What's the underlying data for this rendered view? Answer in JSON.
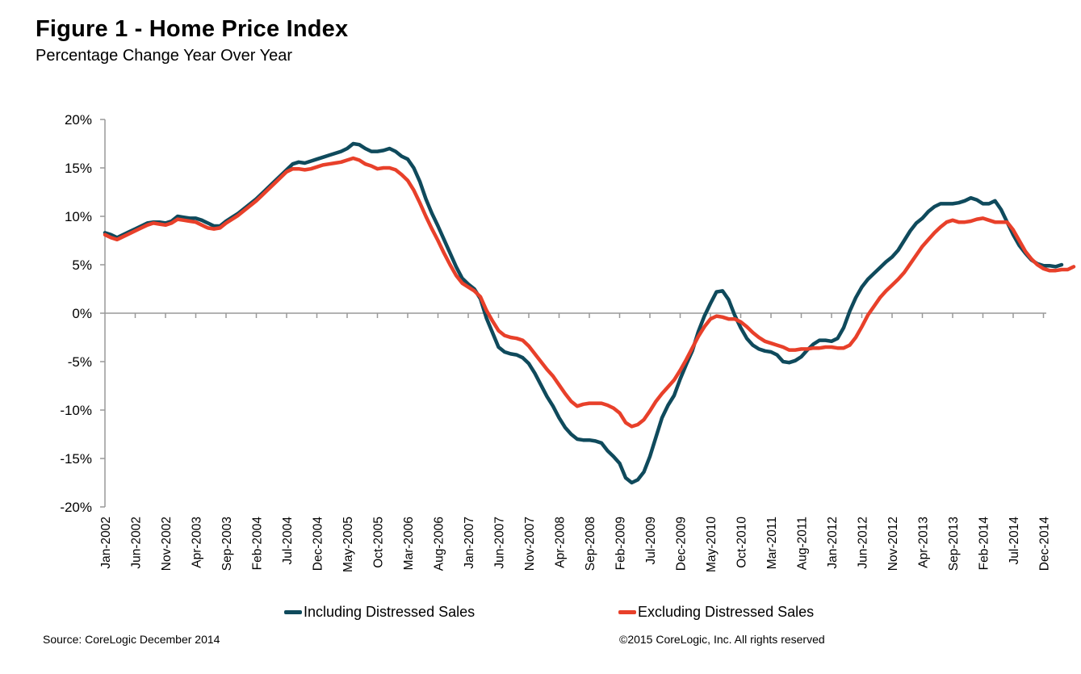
{
  "header": {
    "title": "Figure 1 - Home Price Index",
    "subtitle": "Percentage Change Year Over Year"
  },
  "footer": {
    "source": "Source: CoreLogic  December 2014",
    "copyright": "©2015 CoreLogic, Inc. All rights reserved"
  },
  "colors": {
    "including": "#0f4a5c",
    "excluding": "#e8402a",
    "axis": "#999999"
  },
  "chart_data": {
    "type": "line",
    "title": "Figure 1 - Home Price Index",
    "subtitle": "Percentage Change Year Over Year",
    "xlabel": "",
    "ylabel": "",
    "ylim": [
      -20,
      20
    ],
    "yticks": [
      20,
      15,
      10,
      5,
      0,
      -5,
      -10,
      -15,
      -20
    ],
    "ytick_labels": [
      "20%",
      "15%",
      "10%",
      "5%",
      "0%",
      "-5%",
      "-10%",
      "-15%",
      "-20%"
    ],
    "x_start": "Jan-2002",
    "x_end": "Dec-2014",
    "x_frequency": "monthly",
    "xtick_labels": [
      "Jan-2002",
      "Jun-2002",
      "Nov-2002",
      "Apr-2003",
      "Sep-2003",
      "Feb-2004",
      "Jul-2004",
      "Dec-2004",
      "May-2005",
      "Oct-2005",
      "Mar-2006",
      "Aug-2006",
      "Jan-2007",
      "Jun-2007",
      "Nov-2007",
      "Apr-2008",
      "Sep-2008",
      "Feb-2009",
      "Jul-2009",
      "Dec-2009",
      "May-2010",
      "Oct-2010",
      "Mar-2011",
      "Aug-2011",
      "Jan-2012",
      "Jun-2012",
      "Nov-2012",
      "Apr-2013",
      "Sep-2013",
      "Feb-2014",
      "Jul-2014",
      "Dec-2014"
    ],
    "grid": false,
    "legend_position": "bottom",
    "series": [
      {
        "name": "Including Distressed Sales",
        "color": "#0f4a5c",
        "values": [
          8.3,
          8.1,
          7.8,
          8.1,
          8.4,
          8.7,
          9.0,
          9.3,
          9.4,
          9.4,
          9.3,
          9.5,
          10.0,
          9.9,
          9.8,
          9.8,
          9.6,
          9.3,
          9.0,
          9.0,
          9.5,
          9.9,
          10.3,
          10.8,
          11.3,
          11.8,
          12.4,
          13.0,
          13.6,
          14.2,
          14.8,
          15.4,
          15.6,
          15.5,
          15.7,
          15.9,
          16.1,
          16.3,
          16.5,
          16.7,
          17.0,
          17.5,
          17.4,
          17.0,
          16.7,
          16.7,
          16.8,
          17.0,
          16.7,
          16.2,
          15.9,
          15.0,
          13.6,
          11.8,
          10.3,
          9.0,
          7.6,
          6.2,
          4.8,
          3.6,
          3.0,
          2.5,
          1.5,
          -0.5,
          -2.0,
          -3.5,
          -4.0,
          -4.2,
          -4.3,
          -4.6,
          -5.2,
          -6.2,
          -7.4,
          -8.6,
          -9.6,
          -10.8,
          -11.8,
          -12.5,
          -13.0,
          -13.1,
          -13.1,
          -13.2,
          -13.4,
          -14.2,
          -14.8,
          -15.5,
          -17.0,
          -17.5,
          -17.2,
          -16.4,
          -14.8,
          -12.8,
          -10.8,
          -9.5,
          -8.5,
          -6.8,
          -5.3,
          -3.9,
          -1.9,
          -0.3,
          1.0,
          2.2,
          2.3,
          1.4,
          -0.2,
          -1.5,
          -2.6,
          -3.3,
          -3.7,
          -3.9,
          -4.0,
          -4.3,
          -5.0,
          -5.1,
          -4.9,
          -4.5,
          -3.8,
          -3.2,
          -2.8,
          -2.8,
          -2.9,
          -2.6,
          -1.5,
          0.2,
          1.6,
          2.7,
          3.5,
          4.1,
          4.7,
          5.3,
          5.8,
          6.5,
          7.5,
          8.5,
          9.3,
          9.8,
          10.5,
          11.0,
          11.3,
          11.3,
          11.3,
          11.4,
          11.6,
          11.9,
          11.7,
          11.3,
          11.3,
          11.6,
          10.7,
          9.4,
          8.1,
          7.0,
          6.2,
          5.5,
          5.1,
          4.9,
          4.9,
          4.8,
          5.0
        ]
      },
      {
        "name": "Excluding Distressed Sales",
        "color": "#e8402a",
        "values": [
          8.1,
          7.8,
          7.6,
          7.9,
          8.2,
          8.5,
          8.8,
          9.1,
          9.3,
          9.2,
          9.1,
          9.3,
          9.7,
          9.6,
          9.5,
          9.4,
          9.1,
          8.8,
          8.7,
          8.8,
          9.3,
          9.7,
          10.1,
          10.6,
          11.1,
          11.6,
          12.2,
          12.8,
          13.4,
          14.0,
          14.6,
          14.9,
          14.9,
          14.8,
          14.9,
          15.1,
          15.3,
          15.4,
          15.5,
          15.6,
          15.8,
          16.0,
          15.8,
          15.4,
          15.2,
          14.9,
          15.0,
          15.0,
          14.8,
          14.3,
          13.7,
          12.7,
          11.4,
          10.0,
          8.7,
          7.5,
          6.2,
          5.0,
          3.9,
          3.1,
          2.7,
          2.3,
          1.7,
          0.3,
          -0.8,
          -1.8,
          -2.3,
          -2.5,
          -2.6,
          -2.8,
          -3.4,
          -4.2,
          -5.0,
          -5.8,
          -6.5,
          -7.4,
          -8.3,
          -9.1,
          -9.6,
          -9.4,
          -9.3,
          -9.3,
          -9.3,
          -9.5,
          -9.8,
          -10.3,
          -11.3,
          -11.7,
          -11.5,
          -11.0,
          -10.1,
          -9.1,
          -8.3,
          -7.6,
          -6.9,
          -5.9,
          -4.8,
          -3.6,
          -2.4,
          -1.4,
          -0.6,
          -0.3,
          -0.4,
          -0.6,
          -0.6,
          -0.9,
          -1.4,
          -2.0,
          -2.5,
          -2.9,
          -3.1,
          -3.3,
          -3.5,
          -3.8,
          -3.8,
          -3.7,
          -3.7,
          -3.6,
          -3.6,
          -3.5,
          -3.5,
          -3.6,
          -3.6,
          -3.3,
          -2.5,
          -1.4,
          -0.2,
          0.7,
          1.6,
          2.3,
          2.9,
          3.5,
          4.2,
          5.1,
          6.0,
          6.9,
          7.6,
          8.3,
          8.9,
          9.4,
          9.6,
          9.4,
          9.4,
          9.5,
          9.7,
          9.8,
          9.6,
          9.4,
          9.4,
          9.4,
          8.6,
          7.5,
          6.4,
          5.6,
          5.0,
          4.6,
          4.4,
          4.4,
          4.5,
          4.5,
          4.8
        ]
      }
    ]
  }
}
